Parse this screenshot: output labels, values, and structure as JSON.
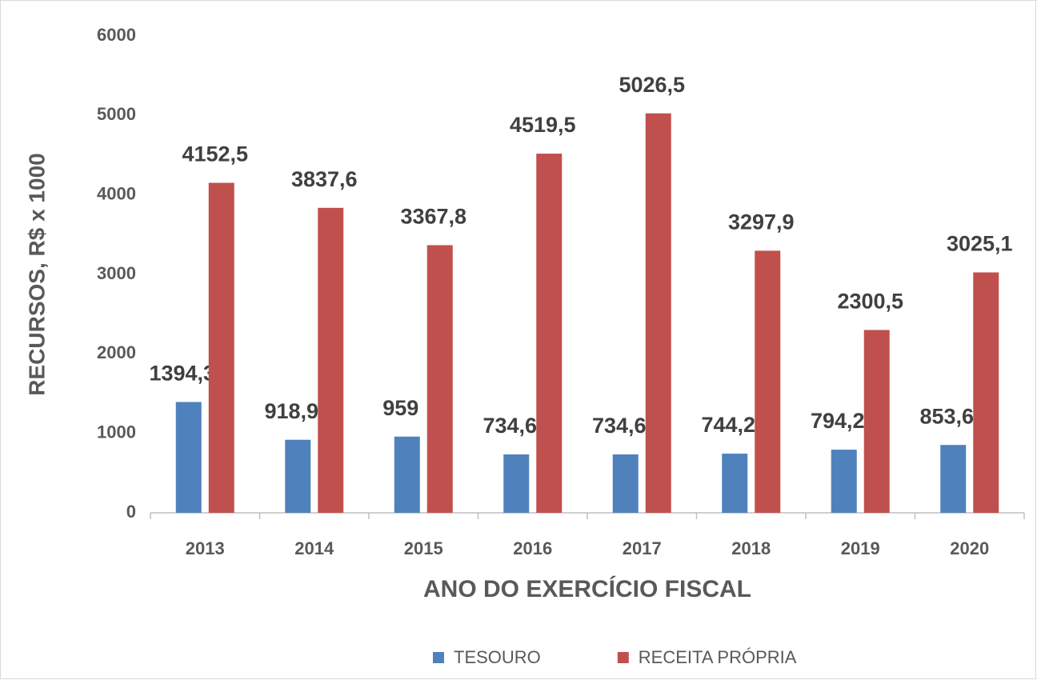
{
  "chart_data": {
    "type": "bar",
    "x_label": "ANO DO EXERCÍCIO FISCAL",
    "y_label": "RECURSOS, R$ x 1000",
    "categories": [
      "2013",
      "2014",
      "2015",
      "2016",
      "2017",
      "2018",
      "2019",
      "2020"
    ],
    "series": [
      {
        "name": "TESOURO",
        "color": "#4f81bd",
        "values": [
          1394.3,
          918.9,
          959,
          734.6,
          734.6,
          744.2,
          794.2,
          853.6
        ],
        "value_labels": [
          "1394,3",
          "918,9",
          "959",
          "734,6",
          "734,6",
          "744,2",
          "794,2",
          "853,6"
        ]
      },
      {
        "name": "RECEITA PRÓPRIA",
        "color": "#c0504d",
        "values": [
          4152.5,
          3837.6,
          3367.8,
          4519.5,
          5026.5,
          3297.9,
          2300.5,
          3025.1
        ],
        "value_labels": [
          "4152,5",
          "3837,6",
          "3367,8",
          "4519,5",
          "5026,5",
          "3297,9",
          "2300,5",
          "3025,1"
        ]
      }
    ],
    "ylim": [
      0,
      6000
    ],
    "yticks": [
      0,
      1000,
      2000,
      3000,
      4000,
      5000,
      6000
    ],
    "grid": false,
    "legend": "bottom"
  }
}
